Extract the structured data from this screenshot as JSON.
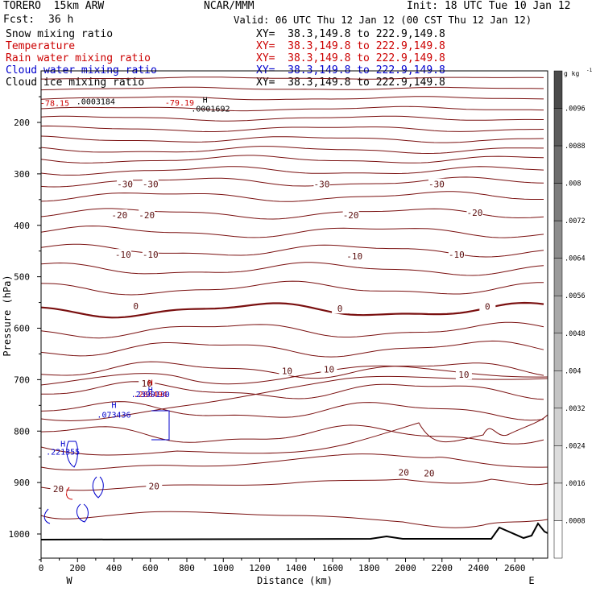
{
  "header": {
    "model": "TORERO  15km ARW",
    "org": "NCAR/MMM",
    "init": "Init: 18 UTC Tue 10 Jan 12",
    "fcst_label": "Fcst:",
    "fcst_value": "36 h",
    "valid": "Valid: 06 UTC Thu 12 Jan 12 (00 CST Thu 12 Jan 12)"
  },
  "fields": [
    {
      "label": "Snow mixing ratio",
      "xy": "XY=  38.3,149.8 to 222.9,149.8",
      "color": "#000000"
    },
    {
      "label": "Temperature",
      "xy": "XY=  38.3,149.8 to 222.9,149.8",
      "color": "#cc0000"
    },
    {
      "label": "Rain water mixing ratio",
      "xy": "XY=  38.3,149.8 to 222.9,149.8",
      "color": "#cc0000"
    },
    {
      "label": "Cloud water mixing ratio",
      "xy": "XY=  38.3,149.8 to 222.9,149.8",
      "color": "#0000cc"
    },
    {
      "label": "Cloud ice mixing ratio",
      "xy": "XY=  38.3,149.8 to 222.9,149.8",
      "color": "#000000"
    }
  ],
  "chart_data": {
    "type": "contour",
    "xlabel": "Distance (km)",
    "ylabel": "Pressure (hPa)",
    "x_ticks": [
      0,
      200,
      400,
      600,
      800,
      1000,
      1200,
      1400,
      1600,
      1800,
      2000,
      2200,
      2400,
      2600
    ],
    "y_ticks": [
      200,
      300,
      400,
      500,
      600,
      700,
      800,
      900,
      1000
    ],
    "xlim": [
      0,
      2780
    ],
    "ylim": [
      1050,
      100
    ],
    "x_end_labels": {
      "left": "W",
      "right": "E"
    },
    "colorbar": {
      "unit": "g kg",
      "unit_exp": "-1",
      "tick_labels": [
        ".0096",
        ".0088",
        ".008",
        ".0072",
        ".0064",
        ".0056",
        ".0048",
        ".004",
        ".0032",
        ".0024",
        ".0016",
        ".0008"
      ],
      "band_colors": [
        "#4a4a4a",
        "#5c5c5c",
        "#6c6c6c",
        "#7c7c7c",
        "#8c8c8c",
        "#9a9a9a",
        "#a8a8a8",
        "#b6b6b6",
        "#c4c4c4",
        "#d0d0d0",
        "#dcdcdc",
        "#e8e8e8",
        "#ffffff"
      ]
    },
    "temperature_labels": [
      {
        "x": 460,
        "p": 320,
        "text": "-30"
      },
      {
        "x": 600,
        "p": 320,
        "text": "-30"
      },
      {
        "x": 1540,
        "p": 320,
        "text": "-30"
      },
      {
        "x": 2170,
        "p": 320,
        "text": "-30"
      },
      {
        "x": 430,
        "p": 380,
        "text": "-20"
      },
      {
        "x": 580,
        "p": 380,
        "text": "-20"
      },
      {
        "x": 1700,
        "p": 380,
        "text": "-20"
      },
      {
        "x": 2380,
        "p": 375,
        "text": "-20"
      },
      {
        "x": 450,
        "p": 457,
        "text": "-10"
      },
      {
        "x": 600,
        "p": 457,
        "text": "-10"
      },
      {
        "x": 1720,
        "p": 460,
        "text": "-10"
      },
      {
        "x": 2280,
        "p": 457,
        "text": "-10"
      },
      {
        "x": 520,
        "p": 557,
        "text": "0"
      },
      {
        "x": 1640,
        "p": 562,
        "text": "0"
      },
      {
        "x": 2450,
        "p": 558,
        "text": "0"
      },
      {
        "x": 1350,
        "p": 683,
        "text": "10"
      },
      {
        "x": 1580,
        "p": 680,
        "text": "10"
      },
      {
        "x": 2320,
        "p": 690,
        "text": "10"
      },
      {
        "x": 580,
        "p": 707,
        "text": "10"
      },
      {
        "x": 1990,
        "p": 880,
        "text": "20"
      },
      {
        "x": 2130,
        "p": 882,
        "text": "20"
      },
      {
        "x": 620,
        "p": 907,
        "text": "20"
      },
      {
        "x": 95,
        "p": 912,
        "text": "20"
      }
    ],
    "annotations": [
      {
        "x": 300,
        "p": 165,
        "text": ".0003184",
        "color": "#000000"
      },
      {
        "x": 900,
        "p": 162,
        "text": "H",
        "color": "#000000"
      },
      {
        "x": 930,
        "p": 179,
        "text": ".0001692",
        "color": "#000000"
      },
      {
        "x": 760,
        "p": 167,
        "text": "-79.19",
        "color": "#cc0000"
      },
      {
        "x": 75,
        "p": 168,
        "text": "-78.15",
        "color": "#cc0000"
      },
      {
        "x": 600,
        "p": 711,
        "text": "H",
        "color": "#cc0000"
      },
      {
        "x": 600,
        "p": 734,
        "text": ".286494",
        "color": "#cc0000"
      },
      {
        "x": 600,
        "p": 725,
        "text": "H",
        "color": "#0000cc"
      },
      {
        "x": 600,
        "p": 734,
        "text": ".2390130",
        "color": "#0000cc"
      },
      {
        "x": 400,
        "p": 755,
        "text": "H",
        "color": "#0000cc"
      },
      {
        "x": 400,
        "p": 774,
        "text": ".073436",
        "color": "#0000cc"
      },
      {
        "x": 120,
        "p": 830,
        "text": "H",
        "color": "#0000cc"
      },
      {
        "x": 120,
        "p": 846,
        "text": ".221355",
        "color": "#0000cc"
      }
    ]
  }
}
